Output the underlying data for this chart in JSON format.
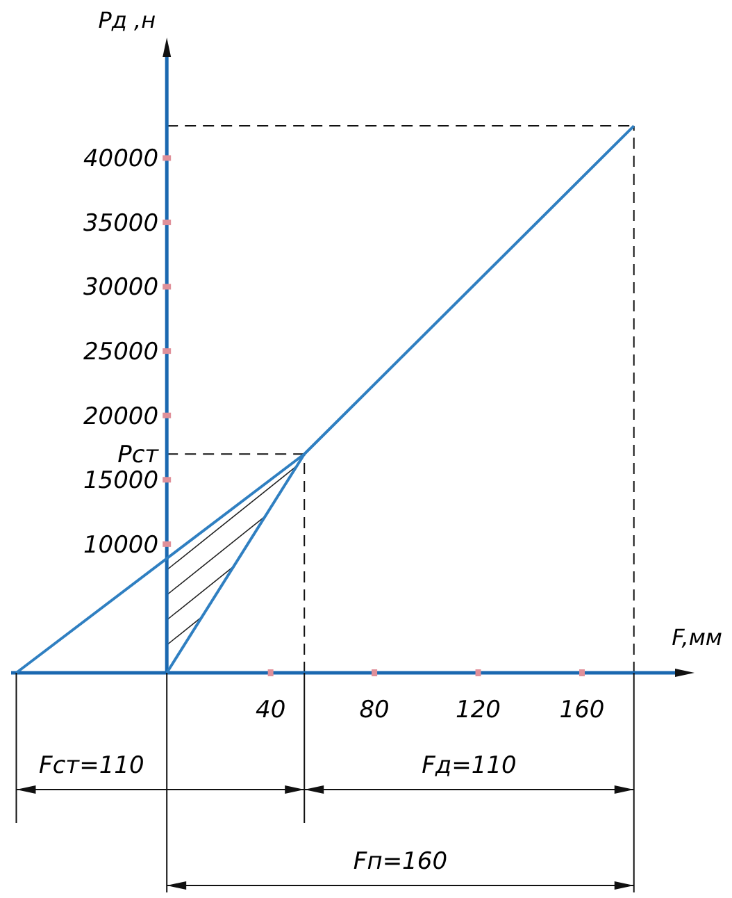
{
  "chart_data": {
    "type": "line",
    "xlabel": "F,мм",
    "ylabel": "Pд ,н",
    "xlim": [
      -60,
      198
    ],
    "ylim": [
      0,
      48500
    ],
    "xticks": [
      40,
      80,
      120,
      160
    ],
    "yticks": [
      10000,
      15000,
      20000,
      25000,
      30000,
      35000,
      40000
    ],
    "ref_lines": [
      {
        "axis": "y",
        "value": 17000,
        "label": "Pст",
        "color": "#111111",
        "line_style": "dashed"
      },
      {
        "axis": "x",
        "value": 53,
        "color": "#111111",
        "line_style": "dashed"
      },
      {
        "axis": "y",
        "value": 42500,
        "color": "#111111",
        "line_style": "dashed"
      },
      {
        "axis": "x",
        "value": 180,
        "color": "#111111",
        "line_style": "dashed"
      }
    ],
    "series": [
      {
        "color": "#2f7fc1",
        "x": [
          -58,
          53,
          180
        ],
        "values": [
          0,
          17000,
          42500
        ]
      },
      {
        "color": "#2f7fc1",
        "x": [
          0,
          53
        ],
        "values": [
          0,
          17000
        ]
      }
    ],
    "annotations": [
      "Fст=110",
      "Fд=110",
      "Fп=160"
    ],
    "marker": "none",
    "line_style": "solid"
  }
}
